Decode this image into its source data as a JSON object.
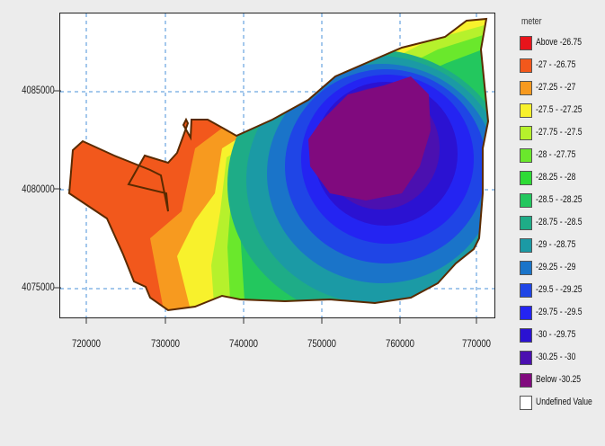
{
  "map": {
    "y_axis": {
      "ticks": [
        "4075000",
        "4080000",
        "4085000"
      ]
    },
    "x_axis": {
      "ticks": [
        "720000",
        "730000",
        "740000",
        "750000",
        "760000",
        "770000"
      ]
    }
  },
  "legend": {
    "title": "meter",
    "items": [
      {
        "label": "Above  -26.75",
        "color": "#e8141b"
      },
      {
        "label": "-27 - -26.75",
        "color": "#f2581c"
      },
      {
        "label": "-27.25 -   -27",
        "color": "#f79a1f"
      },
      {
        "label": "-27.5 - -27.25",
        "color": "#f8f12c"
      },
      {
        "label": "-27.75 -  -27.5",
        "color": "#b6f12c"
      },
      {
        "label": "-28 - -27.75",
        "color": "#6ae82c"
      },
      {
        "label": "-28.25 -   -28",
        "color": "#2edb35"
      },
      {
        "label": "-28.5 - -28.25",
        "color": "#23c75e"
      },
      {
        "label": "-28.75 -  -28.5",
        "color": "#1eac87"
      },
      {
        "label": "-29 - -28.75",
        "color": "#1b9aa5"
      },
      {
        "label": "-29.25 -   -29",
        "color": "#1a74c9"
      },
      {
        "label": "-29.5 - -29.25",
        "color": "#1f45e6"
      },
      {
        "label": "-29.75 -  -29.5",
        "color": "#2424f2"
      },
      {
        "label": "-30 - -29.75",
        "color": "#2b12d2"
      },
      {
        "label": "-30.25 -   -30",
        "color": "#4b10b0"
      },
      {
        "label": "Below  -30.25",
        "color": "#800a7e"
      },
      {
        "label": "Undefined Value",
        "color": "#ffffff"
      }
    ]
  }
}
